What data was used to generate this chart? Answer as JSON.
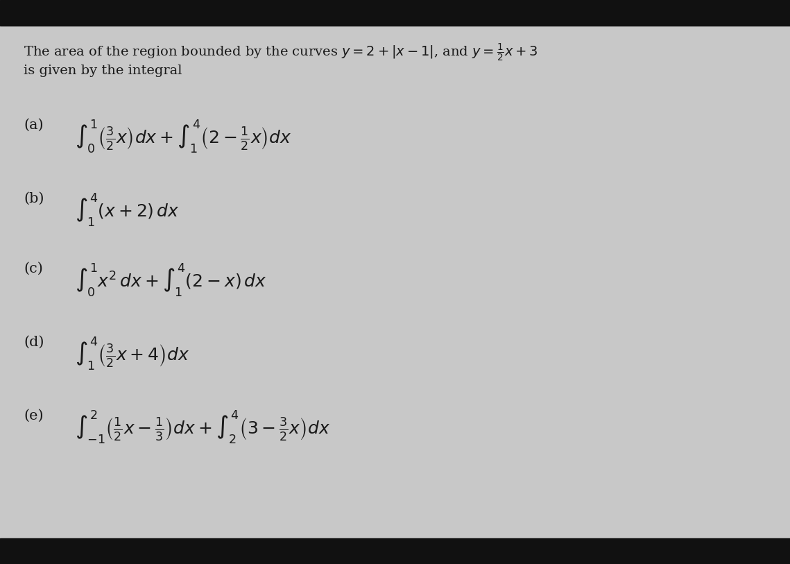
{
  "background_color": "#c8c8c8",
  "top_bar_color": "#111111",
  "bottom_bar_color": "#111111",
  "text_color": "#1a1a1a",
  "title_line1": "The area of the region bounded by the curves $y = 2+|x-1|$, and $y = \\frac{1}{2}x+3$",
  "title_line2": "is given by the integral",
  "option_a_label": "(a)",
  "option_a_math": "$\\int_0^1 \\left(\\frac{3}{2}x\\right) dx + \\int_1^4 \\left(2 - \\frac{1}{2}x\\right) dx$",
  "option_b_label": "(b)",
  "option_b_math": "$\\int_1^4 (x + 2)\\, dx$",
  "option_c_label": "(c)",
  "option_c_math": "$\\int_0^1 x^2\\, dx + \\int_1^4 (2 - x)\\, dx$",
  "option_d_label": "(d)",
  "option_d_math": "$\\int_1^4 \\left(\\frac{3}{2}x + 4\\right) dx$",
  "option_e_label": "(e)",
  "option_e_math": "$\\int_{-1}^{2} \\left(\\frac{1}{2}x - \\frac{1}{3}\\right) dx + \\int_2^4 \\left(3 - \\frac{3}{2}x\\right) dx$",
  "font_size_title": 14,
  "font_size_label": 15,
  "font_size_math": 18
}
